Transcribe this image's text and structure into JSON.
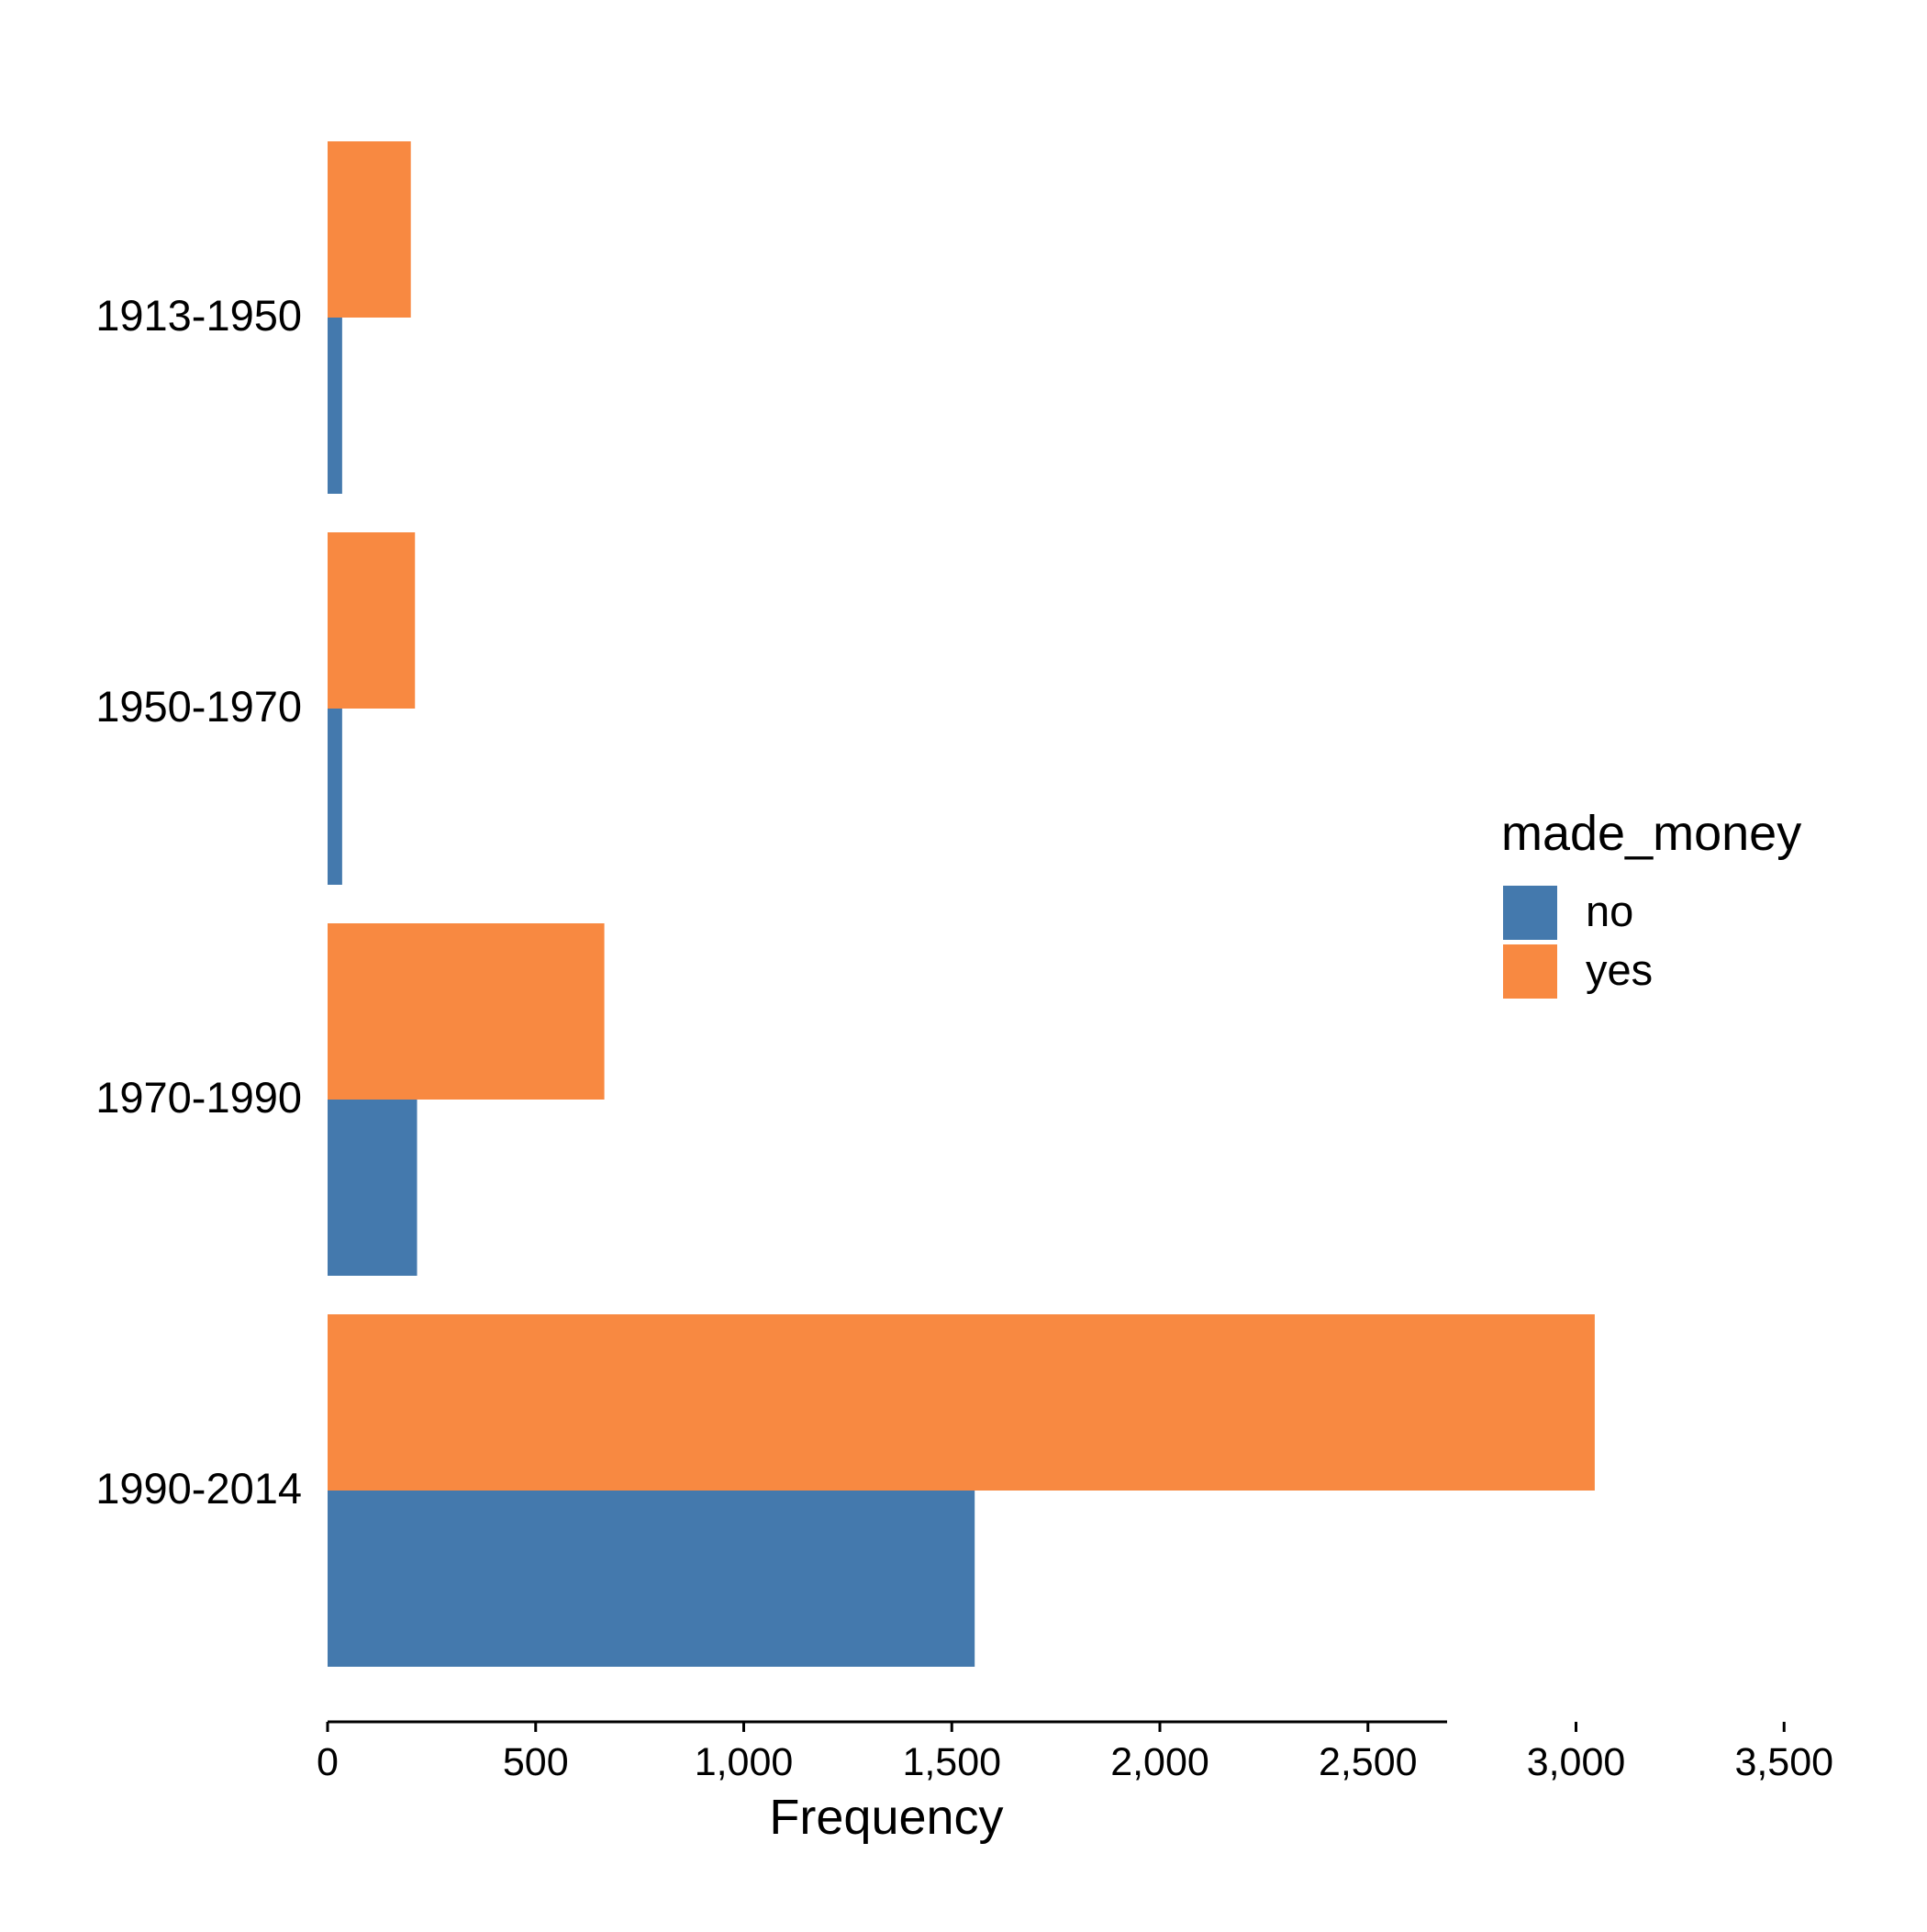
{
  "chart_data": {
    "type": "bar",
    "orientation": "horizontal",
    "categories": [
      "1913-1950",
      "1950-1970",
      "1970-1990",
      "1990-2014"
    ],
    "series": [
      {
        "name": "no",
        "values": [
          35,
          35,
          215,
          1555
        ],
        "color": "#4479ad"
      },
      {
        "name": "yes",
        "values": [
          200,
          210,
          665,
          3045
        ],
        "color": "#f88941"
      }
    ],
    "title": "",
    "xlabel": "Frequency",
    "ylabel": "",
    "xlim": [
      0,
      4000
    ],
    "xticks": [
      0,
      500,
      1000,
      1500,
      2000,
      2500,
      3000,
      3500
    ],
    "xtick_labels": [
      "0",
      "500",
      "1,000",
      "1,500",
      "2,000",
      "2,500",
      "3,000",
      "3,500"
    ],
    "grid": false,
    "legend": {
      "title": "made_money",
      "placement": "right",
      "entries": [
        "no",
        "yes"
      ]
    }
  }
}
